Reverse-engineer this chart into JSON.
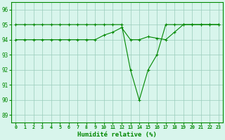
{
  "x": [
    0,
    1,
    2,
    3,
    4,
    5,
    6,
    7,
    8,
    9,
    10,
    11,
    12,
    13,
    14,
    15,
    16,
    17,
    18,
    19,
    20,
    21,
    22,
    23
  ],
  "line1": [
    95,
    95,
    95,
    95,
    95,
    95,
    95,
    95,
    95,
    95,
    95,
    95,
    95,
    92,
    90,
    92,
    93,
    95,
    95,
    95,
    95,
    95,
    95,
    95
  ],
  "line2": [
    94,
    94,
    94,
    94,
    94,
    94,
    94,
    94,
    94,
    94,
    94.3,
    94.5,
    94.8,
    94,
    94,
    94.2,
    94.1,
    94,
    94.5,
    95,
    95,
    95,
    95,
    95
  ],
  "line_color": "#008800",
  "bg_color": "#d8f5ec",
  "grid_color": "#99ccbb",
  "xlabel": "Humidité relative (%)",
  "ylim": [
    88.5,
    96.5
  ],
  "xlim": [
    -0.5,
    23.5
  ],
  "yticks": [
    89,
    90,
    91,
    92,
    93,
    94,
    95,
    96
  ],
  "xticks": [
    0,
    1,
    2,
    3,
    4,
    5,
    6,
    7,
    8,
    9,
    10,
    11,
    12,
    13,
    14,
    15,
    16,
    17,
    18,
    19,
    20,
    21,
    22,
    23
  ],
  "figsize": [
    3.2,
    2.0
  ],
  "dpi": 100
}
